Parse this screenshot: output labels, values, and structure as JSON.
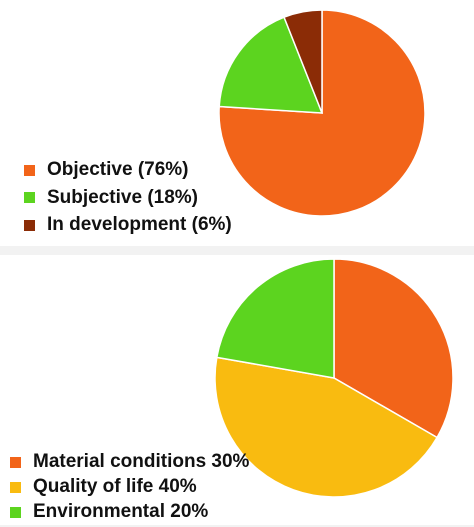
{
  "chart_data": [
    {
      "type": "pie",
      "slices": [
        {
          "label": "Objective (76%)",
          "value": 76,
          "color": "#f26419"
        },
        {
          "label": "Subjective (18%)",
          "value": 18,
          "color": "#5cd41f"
        },
        {
          "label": "In development (6%)",
          "value": 6,
          "color": "#8b2c06"
        }
      ],
      "start_angle_deg": 0,
      "direction": "clockwise",
      "legend_position": "left"
    },
    {
      "type": "pie",
      "slices": [
        {
          "label": "Material conditions 30%",
          "value": 30,
          "color": "#f26419"
        },
        {
          "label": "Quality of life 40%",
          "value": 40,
          "color": "#f9bb10"
        },
        {
          "label": "Environmental 20%",
          "value": 20,
          "color": "#5cd41f"
        }
      ],
      "start_angle_deg": 0,
      "direction": "clockwise",
      "legend_position": "bottom-left"
    }
  ]
}
